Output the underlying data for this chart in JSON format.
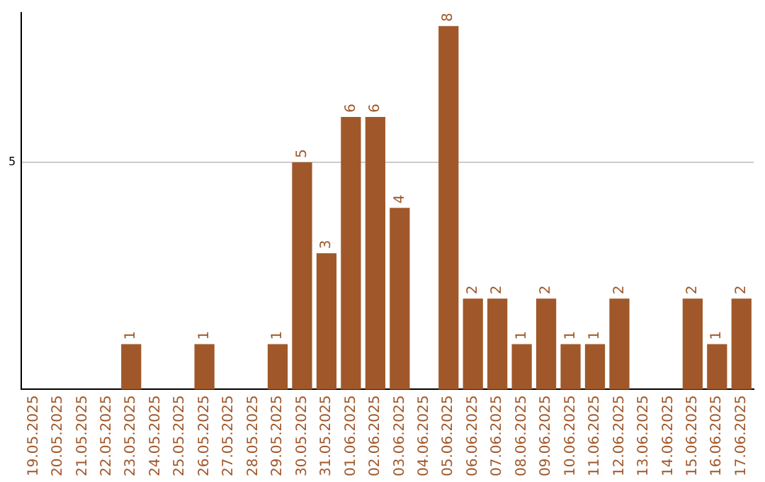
{
  "chart_data": {
    "type": "bar",
    "categories": [
      "19.05.2025",
      "20.05.2025",
      "21.05.2025",
      "22.05.2025",
      "23.05.2025",
      "24.05.2025",
      "25.05.2025",
      "26.05.2025",
      "27.05.2025",
      "28.05.2025",
      "29.05.2025",
      "30.05.2025",
      "31.05.2025",
      "01.06.2025",
      "02.06.2025",
      "03.06.2025",
      "04.06.2025",
      "05.06.2025",
      "06.06.2025",
      "07.06.2025",
      "08.06.2025",
      "09.06.2025",
      "10.06.2025",
      "11.06.2025",
      "12.06.2025",
      "13.06.2025",
      "14.06.2025",
      "15.06.2025",
      "16.06.2025",
      "17.06.2025"
    ],
    "values": [
      0,
      0,
      0,
      0,
      1,
      0,
      0,
      1,
      0,
      0,
      1,
      5,
      3,
      6,
      6,
      4,
      0,
      8,
      2,
      2,
      1,
      2,
      1,
      1,
      2,
      0,
      0,
      2,
      1,
      2
    ],
    "value_labels": [
      null,
      null,
      null,
      null,
      "1",
      null,
      null,
      "1",
      null,
      null,
      "1",
      "5",
      "3",
      "6",
      "6",
      "4",
      null,
      "8",
      "2",
      "2",
      "1",
      "2",
      "1",
      "1",
      "2",
      null,
      null,
      "2",
      "1",
      "2"
    ],
    "color": "#a0582a",
    "ylim": [
      0,
      8.3
    ],
    "yticks": [
      5
    ],
    "grid": "y",
    "legend": false
  }
}
